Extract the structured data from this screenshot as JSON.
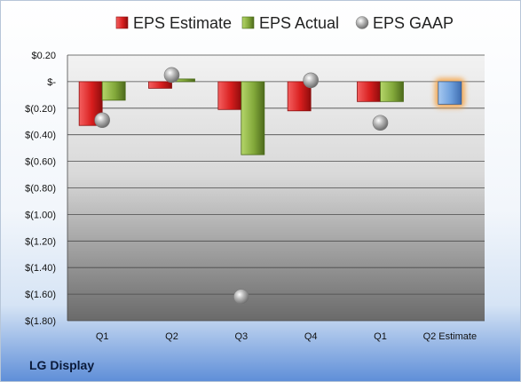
{
  "company": "LG Display",
  "chart_data": {
    "type": "bar",
    "categories": [
      "Q1",
      "Q2",
      "Q3",
      "Q4",
      "Q1",
      "Q2 Estimate"
    ],
    "series": [
      {
        "name": "EPS Estimate",
        "color": "#e03030",
        "values": [
          -0.33,
          -0.05,
          -0.21,
          -0.22,
          -0.15,
          null
        ]
      },
      {
        "name": "EPS Actual",
        "color": "#8ab03a",
        "values": [
          -0.14,
          0.02,
          -0.55,
          null,
          -0.15,
          null
        ]
      },
      {
        "name": "EPS GAAP",
        "color": "#a8a8a8",
        "values": [
          -0.29,
          0.05,
          -1.62,
          0.01,
          -0.31,
          null
        ]
      }
    ],
    "estimate": {
      "category": "Q2 Estimate",
      "value": -0.17,
      "color": "#6fa0dc",
      "glow": "#f5a040"
    },
    "legend": [
      "EPS Estimate",
      "EPS Actual",
      "EPS GAAP"
    ],
    "legend_position": "top",
    "ylim": [
      -1.8,
      0.2
    ],
    "ytick_values": [
      0.2,
      0,
      -0.2,
      -0.4,
      -0.6,
      -0.8,
      -1.0,
      -1.2,
      -1.4,
      -1.6,
      -1.8
    ],
    "ytick_labels": [
      "$0.20",
      "$-",
      "$(0.20)",
      "$(0.40)",
      "$(0.60)",
      "$(0.80)",
      "$(1.00)",
      "$(1.20)",
      "$(1.40)",
      "$(1.60)",
      "$(1.80)"
    ],
    "grid": true
  }
}
